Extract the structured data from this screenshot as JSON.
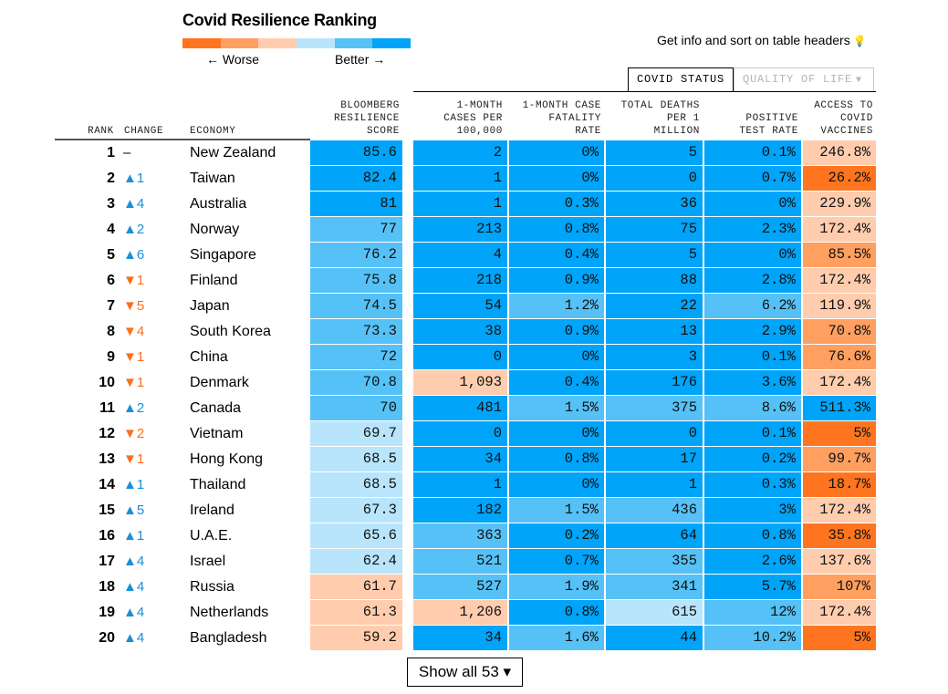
{
  "title": "Covid Resilience Ranking",
  "legend": {
    "worse_label": "← Worse",
    "better_label": "Better →",
    "colors": [
      "#ff751f",
      "#ff9f60",
      "#ffcdae",
      "#b8e5fb",
      "#56c1f6",
      "#00a4f8"
    ]
  },
  "info_text": "Get info and sort on table headers",
  "info_icon": "lightbulb-icon",
  "tabs": [
    {
      "label": "COVID STATUS",
      "active": true
    },
    {
      "label": "QUALITY OF LIFE",
      "active": false,
      "arrow": "▼"
    }
  ],
  "headers": {
    "rank": "RANK",
    "change": "CHANGE",
    "economy": "ECONOMY",
    "score": [
      "BLOOMBERG",
      "RESILIENCE",
      "SCORE"
    ],
    "cases": [
      "1-MONTH",
      "CASES PER",
      "100,000"
    ],
    "cfr": [
      "1-MONTH CASE",
      "FATALITY",
      "RATE"
    ],
    "deaths": [
      "TOTAL DEATHS",
      "PER 1",
      "MILLION"
    ],
    "pos": [
      "POSITIVE",
      "TEST RATE"
    ],
    "vacc": [
      "ACCESS TO",
      "COVID",
      "VACCINES"
    ]
  },
  "rows": [
    {
      "rank": "1",
      "change": "–",
      "dir": "none",
      "economy": "New Zealand",
      "score": "85.6",
      "cases": "2",
      "cfr": "0%",
      "deaths": "5",
      "pos": "0.1%",
      "vacc": "246.8%",
      "lv": [
        6,
        6,
        6,
        6,
        6,
        3
      ]
    },
    {
      "rank": "2",
      "change": "▲1",
      "dir": "up",
      "economy": "Taiwan",
      "score": "82.4",
      "cases": "1",
      "cfr": "0%",
      "deaths": "0",
      "pos": "0.7%",
      "vacc": "26.2%",
      "lv": [
        6,
        6,
        6,
        6,
        6,
        1
      ]
    },
    {
      "rank": "3",
      "change": "▲4",
      "dir": "up",
      "economy": "Australia",
      "score": "81",
      "cases": "1",
      "cfr": "0.3%",
      "deaths": "36",
      "pos": "0%",
      "vacc": "229.9%",
      "lv": [
        6,
        6,
        6,
        6,
        6,
        3
      ]
    },
    {
      "rank": "4",
      "change": "▲2",
      "dir": "up",
      "economy": "Norway",
      "score": "77",
      "cases": "213",
      "cfr": "0.8%",
      "deaths": "75",
      "pos": "2.3%",
      "vacc": "172.4%",
      "lv": [
        5,
        6,
        6,
        6,
        6,
        3
      ]
    },
    {
      "rank": "5",
      "change": "▲6",
      "dir": "up",
      "economy": "Singapore",
      "score": "76.2",
      "cases": "4",
      "cfr": "0.4%",
      "deaths": "5",
      "pos": "0%",
      "vacc": "85.5%",
      "lv": [
        5,
        6,
        6,
        6,
        6,
        2
      ]
    },
    {
      "rank": "6",
      "change": "▼1",
      "dir": "down",
      "economy": "Finland",
      "score": "75.8",
      "cases": "218",
      "cfr": "0.9%",
      "deaths": "88",
      "pos": "2.8%",
      "vacc": "172.4%",
      "lv": [
        5,
        6,
        6,
        6,
        6,
        3
      ]
    },
    {
      "rank": "7",
      "change": "▼5",
      "dir": "down",
      "economy": "Japan",
      "score": "74.5",
      "cases": "54",
      "cfr": "1.2%",
      "deaths": "22",
      "pos": "6.2%",
      "vacc": "119.9%",
      "lv": [
        5,
        6,
        5,
        6,
        5,
        3
      ]
    },
    {
      "rank": "8",
      "change": "▼4",
      "dir": "down",
      "economy": "South Korea",
      "score": "73.3",
      "cases": "38",
      "cfr": "0.9%",
      "deaths": "13",
      "pos": "2.9%",
      "vacc": "70.8%",
      "lv": [
        5,
        6,
        6,
        6,
        6,
        2
      ]
    },
    {
      "rank": "9",
      "change": "▼1",
      "dir": "down",
      "economy": "China",
      "score": "72",
      "cases": "0",
      "cfr": "0%",
      "deaths": "3",
      "pos": "0.1%",
      "vacc": "76.6%",
      "lv": [
        5,
        6,
        6,
        6,
        6,
        2
      ]
    },
    {
      "rank": "10",
      "change": "▼1",
      "dir": "down",
      "economy": "Denmark",
      "score": "70.8",
      "cases": "1,093",
      "cfr": "0.4%",
      "deaths": "176",
      "pos": "3.6%",
      "vacc": "172.4%",
      "lv": [
        5,
        3,
        6,
        6,
        6,
        3
      ]
    },
    {
      "rank": "11",
      "change": "▲2",
      "dir": "up",
      "economy": "Canada",
      "score": "70",
      "cases": "481",
      "cfr": "1.5%",
      "deaths": "375",
      "pos": "8.6%",
      "vacc": "511.3%",
      "lv": [
        5,
        6,
        5,
        5,
        5,
        6
      ]
    },
    {
      "rank": "12",
      "change": "▼2",
      "dir": "down",
      "economy": "Vietnam",
      "score": "69.7",
      "cases": "0",
      "cfr": "0%",
      "deaths": "0",
      "pos": "0.1%",
      "vacc": "5%",
      "lv": [
        4,
        6,
        6,
        6,
        6,
        1
      ]
    },
    {
      "rank": "13",
      "change": "▼1",
      "dir": "down",
      "economy": "Hong Kong",
      "score": "68.5",
      "cases": "34",
      "cfr": "0.8%",
      "deaths": "17",
      "pos": "0.2%",
      "vacc": "99.7%",
      "lv": [
        4,
        6,
        6,
        6,
        6,
        2
      ]
    },
    {
      "rank": "14",
      "change": "▲1",
      "dir": "up",
      "economy": "Thailand",
      "score": "68.5",
      "cases": "1",
      "cfr": "0%",
      "deaths": "1",
      "pos": "0.3%",
      "vacc": "18.7%",
      "lv": [
        4,
        6,
        6,
        6,
        6,
        1
      ]
    },
    {
      "rank": "15",
      "change": "▲5",
      "dir": "up",
      "economy": "Ireland",
      "score": "67.3",
      "cases": "182",
      "cfr": "1.5%",
      "deaths": "436",
      "pos": "3%",
      "vacc": "172.4%",
      "lv": [
        4,
        6,
        5,
        5,
        6,
        3
      ]
    },
    {
      "rank": "16",
      "change": "▲1",
      "dir": "up",
      "economy": "U.A.E.",
      "score": "65.6",
      "cases": "363",
      "cfr": "0.2%",
      "deaths": "64",
      "pos": "0.8%",
      "vacc": "35.8%",
      "lv": [
        4,
        5,
        6,
        6,
        6,
        1
      ]
    },
    {
      "rank": "17",
      "change": "▲4",
      "dir": "up",
      "economy": "Israel",
      "score": "62.4",
      "cases": "521",
      "cfr": "0.7%",
      "deaths": "355",
      "pos": "2.6%",
      "vacc": "137.6%",
      "lv": [
        4,
        5,
        6,
        5,
        6,
        3
      ]
    },
    {
      "rank": "18",
      "change": "▲4",
      "dir": "up",
      "economy": "Russia",
      "score": "61.7",
      "cases": "527",
      "cfr": "1.9%",
      "deaths": "341",
      "pos": "5.7%",
      "vacc": "107%",
      "lv": [
        3,
        5,
        5,
        5,
        6,
        2
      ]
    },
    {
      "rank": "19",
      "change": "▲4",
      "dir": "up",
      "economy": "Netherlands",
      "score": "61.3",
      "cases": "1,206",
      "cfr": "0.8%",
      "deaths": "615",
      "pos": "12%",
      "vacc": "172.4%",
      "lv": [
        3,
        3,
        6,
        4,
        5,
        3
      ]
    },
    {
      "rank": "20",
      "change": "▲4",
      "dir": "up",
      "economy": "Bangladesh",
      "score": "59.2",
      "cases": "34",
      "cfr": "1.6%",
      "deaths": "44",
      "pos": "10.2%",
      "vacc": "5%",
      "lv": [
        3,
        6,
        5,
        6,
        5,
        1
      ]
    }
  ],
  "show_all_label": "Show all 53 ▾"
}
